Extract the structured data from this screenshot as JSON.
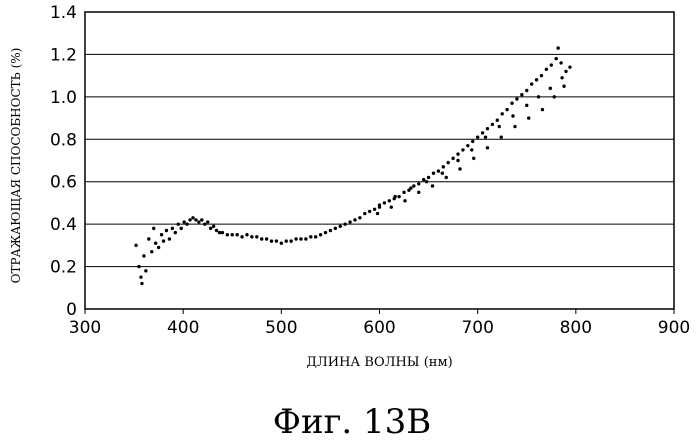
{
  "chart_data": {
    "type": "scatter",
    "xlabel": "ДЛИНА ВОЛНЫ (нм)",
    "ylabel": "ОТРАЖАЮЩАЯ СПОСОБНОСТЬ (%)",
    "caption": "Фиг. 13B",
    "xlim": [
      300,
      900
    ],
    "ylim": [
      0,
      1.4
    ],
    "x_ticks": [
      "300",
      "400",
      "500",
      "600",
      "700",
      "800",
      "900"
    ],
    "y_ticks": [
      "0",
      "0.2",
      "0.4",
      "0.6",
      "0.8",
      "1.0",
      "1.2",
      "1.4"
    ],
    "grid": "horizontal",
    "marker_color": "#000000",
    "series": [
      {
        "name": "",
        "points": [
          [
            352,
            0.3
          ],
          [
            355,
            0.2
          ],
          [
            357,
            0.15
          ],
          [
            358,
            0.12
          ],
          [
            360,
            0.25
          ],
          [
            362,
            0.18
          ],
          [
            365,
            0.33
          ],
          [
            368,
            0.27
          ],
          [
            370,
            0.38
          ],
          [
            372,
            0.31
          ],
          [
            375,
            0.29
          ],
          [
            378,
            0.35
          ],
          [
            380,
            0.32
          ],
          [
            383,
            0.37
          ],
          [
            386,
            0.33
          ],
          [
            389,
            0.38
          ],
          [
            392,
            0.36
          ],
          [
            395,
            0.4
          ],
          [
            398,
            0.38
          ],
          [
            401,
            0.41
          ],
          [
            404,
            0.4
          ],
          [
            407,
            0.42
          ],
          [
            410,
            0.43
          ],
          [
            413,
            0.42
          ],
          [
            416,
            0.41
          ],
          [
            419,
            0.42
          ],
          [
            422,
            0.4
          ],
          [
            425,
            0.41
          ],
          [
            428,
            0.38
          ],
          [
            431,
            0.39
          ],
          [
            434,
            0.37
          ],
          [
            437,
            0.36
          ],
          [
            440,
            0.36
          ],
          [
            445,
            0.35
          ],
          [
            450,
            0.35
          ],
          [
            455,
            0.35
          ],
          [
            460,
            0.34
          ],
          [
            465,
            0.35
          ],
          [
            470,
            0.34
          ],
          [
            475,
            0.34
          ],
          [
            480,
            0.33
          ],
          [
            485,
            0.33
          ],
          [
            490,
            0.32
          ],
          [
            495,
            0.32
          ],
          [
            500,
            0.31
          ],
          [
            505,
            0.32
          ],
          [
            510,
            0.32
          ],
          [
            515,
            0.33
          ],
          [
            520,
            0.33
          ],
          [
            525,
            0.33
          ],
          [
            530,
            0.34
          ],
          [
            535,
            0.34
          ],
          [
            540,
            0.35
          ],
          [
            545,
            0.36
          ],
          [
            550,
            0.37
          ],
          [
            555,
            0.38
          ],
          [
            560,
            0.39
          ],
          [
            565,
            0.4
          ],
          [
            570,
            0.41
          ],
          [
            575,
            0.42
          ],
          [
            580,
            0.43
          ],
          [
            585,
            0.45
          ],
          [
            590,
            0.46
          ],
          [
            595,
            0.47
          ],
          [
            600,
            0.48
          ],
          [
            605,
            0.5
          ],
          [
            610,
            0.51
          ],
          [
            615,
            0.52
          ],
          [
            620,
            0.53
          ],
          [
            625,
            0.55
          ],
          [
            630,
            0.56
          ],
          [
            635,
            0.58
          ],
          [
            640,
            0.59
          ],
          [
            645,
            0.61
          ],
          [
            650,
            0.62
          ],
          [
            655,
            0.64
          ],
          [
            660,
            0.65
          ],
          [
            665,
            0.67
          ],
          [
            670,
            0.69
          ],
          [
            675,
            0.71
          ],
          [
            680,
            0.73
          ],
          [
            685,
            0.75
          ],
          [
            690,
            0.77
          ],
          [
            695,
            0.79
          ],
          [
            700,
            0.81
          ],
          [
            705,
            0.83
          ],
          [
            710,
            0.85
          ],
          [
            715,
            0.87
          ],
          [
            720,
            0.89
          ],
          [
            725,
            0.92
          ],
          [
            730,
            0.94
          ],
          [
            735,
            0.97
          ],
          [
            740,
            0.99
          ],
          [
            745,
            1.01
          ],
          [
            750,
            1.03
          ],
          [
            755,
            1.06
          ],
          [
            760,
            1.08
          ],
          [
            765,
            1.1
          ],
          [
            770,
            1.13
          ],
          [
            775,
            1.15
          ],
          [
            780,
            1.18
          ],
          [
            785,
            1.16
          ],
          [
            790,
            1.12
          ],
          [
            598,
            0.45
          ],
          [
            612,
            0.48
          ],
          [
            626,
            0.51
          ],
          [
            640,
            0.55
          ],
          [
            654,
            0.58
          ],
          [
            668,
            0.62
          ],
          [
            682,
            0.66
          ],
          [
            696,
            0.71
          ],
          [
            710,
            0.76
          ],
          [
            724,
            0.81
          ],
          [
            738,
            0.86
          ],
          [
            752,
            0.9
          ],
          [
            766,
            0.94
          ],
          [
            778,
            1.0
          ],
          [
            788,
            1.05
          ],
          [
            600,
            0.49
          ],
          [
            616,
            0.53
          ],
          [
            632,
            0.57
          ],
          [
            648,
            0.6
          ],
          [
            664,
            0.64
          ],
          [
            680,
            0.7
          ],
          [
            694,
            0.75
          ],
          [
            708,
            0.81
          ],
          [
            722,
            0.86
          ],
          [
            736,
            0.91
          ],
          [
            750,
            0.96
          ],
          [
            762,
            1.0
          ],
          [
            774,
            1.04
          ],
          [
            786,
            1.09
          ],
          [
            794,
            1.14
          ],
          [
            782,
            1.23
          ]
        ]
      }
    ]
  }
}
